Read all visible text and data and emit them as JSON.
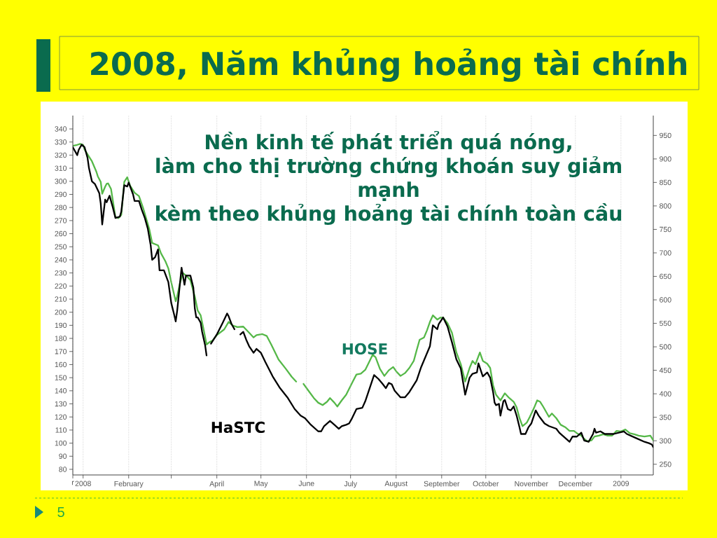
{
  "chart_data": {
    "type": "line",
    "title": "2008, Năm khủng hoảng tài chính",
    "annotations": [
      "Nền kinh tế phát triển quá nóng,",
      "làm cho thị trường chứng khoán suy giảm mạnh",
      "kèm theo khủng hoảng tài chính toàn cầu",
      "5"
    ],
    "xlim": [
      "2007-12-25",
      "2009-01-23"
    ],
    "xticks": [
      {
        "value": "2007-12-25",
        "label": "r"
      },
      {
        "value": "2008-01-01",
        "label": "2008"
      },
      {
        "value": "2008-02-01",
        "label": "February"
      },
      {
        "value": "2008-03-01",
        "label": null
      },
      {
        "value": "2008-04-01",
        "label": "April"
      },
      {
        "value": "2008-05-01",
        "label": "May"
      },
      {
        "value": "2008-06-01",
        "label": "June"
      },
      {
        "value": "2008-07-01",
        "label": "July"
      },
      {
        "value": "2008-08-01",
        "label": "August"
      },
      {
        "value": "2008-09-01",
        "label": "September"
      },
      {
        "value": "2008-10-01",
        "label": "October"
      },
      {
        "value": "2008-11-01",
        "label": "November"
      },
      {
        "value": "2008-12-01",
        "label": "December"
      },
      {
        "value": "2009-01-01",
        "label": "2009"
      }
    ],
    "ylim": [
      75.7,
      350.2
    ],
    "yticks": [
      80,
      90,
      100,
      110,
      120,
      130,
      140,
      150,
      160,
      170,
      180,
      190,
      200,
      210,
      220,
      230,
      240,
      250,
      260,
      270,
      280,
      290,
      300,
      310,
      320,
      330,
      340
    ],
    "y2lim": [
      227.2,
      992.3
    ],
    "y2ticks": [
      250,
      300,
      350,
      400,
      450,
      500,
      550,
      600,
      650,
      700,
      750,
      800,
      850,
      900,
      950
    ],
    "grid": "x",
    "series": [
      {
        "name": "HaSTC",
        "color": "#000000",
        "x": [
          "2007-12-25",
          "2007-12-28",
          "2007-12-29",
          "2007-12-31",
          "2008-01-02",
          "2008-01-04",
          "2008-01-05",
          "2008-01-07",
          "2008-01-09",
          "2008-01-12",
          "2008-01-13",
          "2008-01-14",
          "2008-01-16",
          "2008-01-17",
          "2008-01-19",
          "2008-01-21",
          "2008-01-23",
          "2008-01-26",
          "2008-01-27",
          "2008-01-29",
          "2008-01-31",
          "2008-02-01",
          "2008-02-04",
          "2008-02-05",
          "2008-02-08",
          "2008-02-10",
          "2008-02-12",
          "2008-02-14",
          "2008-02-16",
          "2008-02-17",
          "2008-02-19",
          "2008-02-21",
          "2008-02-22",
          "2008-02-25",
          "2008-02-28",
          "2008-03-01",
          "2008-03-03",
          "2008-03-04",
          "2008-03-05",
          "2008-03-07",
          "2008-03-08",
          "2008-03-10",
          "2008-03-11",
          "2008-03-14",
          "2008-03-16",
          "2008-03-17",
          "2008-03-18",
          "2008-03-19",
          "2008-03-21",
          "2008-03-22",
          "2008-03-24",
          "2008-03-25",
          "2008-03-27",
          "2008-03-28",
          "2008-04-01",
          "2008-04-05",
          "2008-04-08",
          "2008-04-09",
          "2008-04-11",
          "2008-04-13",
          "2008-04-15",
          "2008-04-17",
          "2008-04-19",
          "2008-04-21",
          "2008-04-23",
          "2008-04-26",
          "2008-04-28",
          "2008-05-01",
          "2008-05-04",
          "2008-05-09",
          "2008-05-14",
          "2008-05-19",
          "2008-05-24",
          "2008-05-28",
          "2008-05-31",
          "2008-06-04",
          "2008-06-09",
          "2008-06-11",
          "2008-06-13",
          "2008-06-17",
          "2008-06-20",
          "2008-06-23",
          "2008-06-25",
          "2008-06-28",
          "2008-06-30",
          "2008-07-02",
          "2008-07-05",
          "2008-07-09",
          "2008-07-11",
          "2008-07-14",
          "2008-07-17",
          "2008-07-20",
          "2008-07-23",
          "2008-07-25",
          "2008-07-27",
          "2008-07-29",
          "2008-07-31",
          "2008-08-04",
          "2008-08-07",
          "2008-08-10",
          "2008-08-15",
          "2008-08-18",
          "2008-08-21",
          "2008-08-24",
          "2008-08-26",
          "2008-08-29",
          "2008-08-30",
          "2008-09-02",
          "2008-09-05",
          "2008-09-08",
          "2008-09-11",
          "2008-09-14",
          "2008-09-17",
          "2008-09-20",
          "2008-09-22",
          "2008-09-25",
          "2008-09-26",
          "2008-09-29",
          "2008-10-02",
          "2008-10-04",
          "2008-10-06",
          "2008-10-07",
          "2008-10-08",
          "2008-10-10",
          "2008-10-11",
          "2008-10-13",
          "2008-10-14",
          "2008-10-16",
          "2008-10-18",
          "2008-10-20",
          "2008-10-22",
          "2008-10-24",
          "2008-10-25",
          "2008-10-28",
          "2008-10-30",
          "2008-11-01",
          "2008-11-04",
          "2008-11-06",
          "2008-11-08",
          "2008-11-10",
          "2008-11-13",
          "2008-11-18",
          "2008-11-20",
          "2008-11-22",
          "2008-11-27",
          "2008-11-29",
          "2008-12-02",
          "2008-12-05",
          "2008-12-07",
          "2008-12-10",
          "2008-12-13",
          "2008-12-14",
          "2008-12-15",
          "2008-12-18",
          "2008-12-21",
          "2008-12-27",
          "2009-01-03",
          "2009-01-05",
          "2009-01-11",
          "2009-01-17",
          "2009-01-20",
          "2009-01-22",
          "2009-01-23"
        ],
        "values": [
          326,
          320,
          324,
          328,
          326,
          318,
          310,
          300,
          298,
          291,
          283,
          267,
          286,
          284,
          289,
          281,
          272,
          273,
          277,
          297,
          296,
          299,
          290,
          285,
          285,
          278,
          272,
          264,
          251,
          240,
          242,
          248,
          232,
          232,
          223,
          207,
          198,
          193,
          201,
          223,
          234,
          221,
          228,
          228,
          219,
          203,
          196,
          196,
          192,
          185,
          175,
          167,
          null,
          176,
          183,
          192,
          199,
          197,
          191,
          187,
          null,
          183,
          185,
          179,
          174,
          169,
          172,
          169,
          162,
          151,
          142,
          135,
          126,
          121,
          119,
          114,
          109,
          109,
          113,
          117,
          114,
          111,
          113,
          114,
          115,
          119,
          126,
          127,
          132,
          142,
          152,
          149,
          145,
          142,
          146,
          145,
          140,
          135,
          135,
          139,
          148,
          158,
          166,
          174,
          190,
          187,
          191,
          196,
          189,
          177,
          164,
          157,
          137,
          150,
          153,
          154,
          161,
          151,
          154,
          150,
          139,
          131,
          129,
          130,
          121,
          132,
          133,
          126,
          125,
          128,
          121,
          112,
          107,
          107,
          112,
          115,
          125,
          121,
          118,
          115,
          113,
          111,
          108,
          106,
          101,
          105,
          105,
          108,
          102,
          101,
          107,
          111,
          108,
          109,
          107,
          107,
          109,
          107,
          104,
          101,
          100,
          99,
          97
        ]
      },
      {
        "name": "HOSE",
        "color": "#55b848",
        "axis": "y2",
        "x": [
          "2007-12-25",
          "2007-12-28",
          "2007-12-30",
          "2008-01-01",
          "2008-01-02",
          "2008-01-05",
          "2008-01-07",
          "2008-01-10",
          "2008-01-11",
          "2008-01-13",
          "2008-01-14",
          "2008-01-16",
          "2008-01-17",
          "2008-01-18",
          "2008-01-20",
          "2008-01-21",
          "2008-01-23",
          "2008-01-25",
          "2008-01-27",
          "2008-01-29",
          "2008-01-31",
          "2008-02-02",
          "2008-02-05",
          "2008-02-08",
          "2008-02-11",
          "2008-02-15",
          "2008-02-17",
          "2008-02-21",
          "2008-02-23",
          "2008-02-26",
          "2008-02-28",
          "2008-03-01",
          "2008-03-04",
          "2008-03-05",
          "2008-03-07",
          "2008-03-09",
          "2008-03-12",
          "2008-03-14",
          "2008-03-17",
          "2008-03-19",
          "2008-03-21",
          "2008-03-23",
          "2008-03-25",
          "2008-03-27",
          "2008-03-29",
          "2008-04-01",
          "2008-04-06",
          "2008-04-09",
          "2008-04-12",
          "2008-04-15",
          "2008-04-19",
          "2008-04-23",
          "2008-04-26",
          "2008-04-28",
          "2008-05-02",
          "2008-05-05",
          "2008-05-08",
          "2008-05-13",
          "2008-05-18",
          "2008-05-22",
          "2008-05-25",
          "2008-05-27",
          "2008-05-30",
          "2008-06-02",
          "2008-06-06",
          "2008-06-09",
          "2008-06-12",
          "2008-06-15",
          "2008-06-17",
          "2008-06-20",
          "2008-06-22",
          "2008-06-25",
          "2008-06-28",
          "2008-07-02",
          "2008-07-05",
          "2008-07-08",
          "2008-07-11",
          "2008-07-14",
          "2008-07-16",
          "2008-07-18",
          "2008-07-21",
          "2008-07-24",
          "2008-07-27",
          "2008-07-30",
          "2008-08-01",
          "2008-08-04",
          "2008-08-07",
          "2008-08-10",
          "2008-08-13",
          "2008-08-15",
          "2008-08-17",
          "2008-08-20",
          "2008-08-22",
          "2008-08-24",
          "2008-08-26",
          "2008-08-29",
          "2008-08-31",
          "2008-09-02",
          "2008-09-05",
          "2008-09-08",
          "2008-09-11",
          "2008-09-14",
          "2008-09-17",
          "2008-09-20",
          "2008-09-22",
          "2008-09-24",
          "2008-09-27",
          "2008-09-29",
          "2008-10-02",
          "2008-10-04",
          "2008-10-06",
          "2008-10-08",
          "2008-10-11",
          "2008-10-14",
          "2008-10-17",
          "2008-10-20",
          "2008-10-22",
          "2008-10-24",
          "2008-10-26",
          "2008-10-29",
          "2008-10-31",
          "2008-11-03",
          "2008-11-05",
          "2008-11-07",
          "2008-11-09",
          "2008-11-13",
          "2008-11-15",
          "2008-11-18",
          "2008-11-21",
          "2008-11-24",
          "2008-11-27",
          "2008-11-30",
          "2008-12-02",
          "2008-12-05",
          "2008-12-07",
          "2008-12-09",
          "2008-12-12",
          "2008-12-14",
          "2008-12-17",
          "2008-12-20",
          "2008-12-23",
          "2008-12-26",
          "2008-12-29",
          "2009-01-01",
          "2009-01-04",
          "2009-01-07",
          "2009-01-10",
          "2009-01-13",
          "2009-01-17",
          "2009-01-21",
          "2009-01-23"
        ],
        "values": [
          928,
          930,
          932,
          930,
          920,
          905,
          895,
          873,
          863,
          851,
          826,
          841,
          847,
          848,
          836,
          816,
          776,
          774,
          781,
          851,
          861,
          843,
          828,
          821,
          794,
          751,
          721,
          716,
          699,
          682,
          667,
          637,
          597,
          607,
          637,
          657,
          649,
          642,
          607,
          577,
          567,
          537,
          505,
          510,
          513,
          525,
          537,
          553,
          545,
          542,
          543,
          530,
          520,
          525,
          527,
          523,
          505,
          473,
          453,
          436,
          426,
          null,
          421,
          408,
          391,
          381,
          376,
          383,
          391,
          381,
          373,
          386,
          398,
          423,
          441,
          443,
          451,
          470,
          483,
          478,
          453,
          438,
          450,
          457,
          448,
          438,
          444,
          455,
          470,
          493,
          515,
          520,
          535,
          553,
          567,
          558,
          562,
          562,
          550,
          530,
          488,
          463,
          426,
          455,
          470,
          463,
          488,
          470,
          464,
          455,
          418,
          398,
          386,
          401,
          391,
          383,
          371,
          348,
          331,
          339,
          351,
          371,
          386,
          383,
          373,
          351,
          358,
          348,
          334,
          329,
          321,
          321,
          316,
          311,
          304,
          299,
          301,
          309,
          311,
          314,
          311,
          311,
          321,
          320,
          324,
          316,
          314,
          311,
          309,
          311,
          301
        ]
      }
    ]
  }
}
